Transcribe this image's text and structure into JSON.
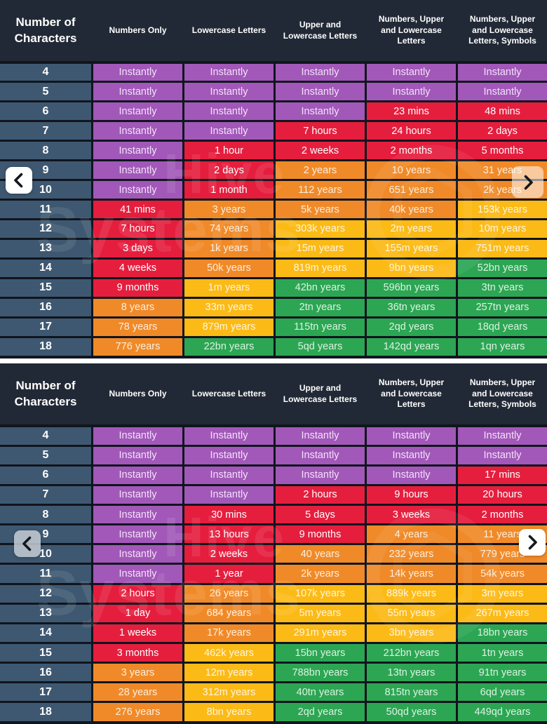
{
  "colors": {
    "purple": "#a258b8",
    "red": "#e51e3e",
    "orange": "#f08a28",
    "yellow": "#fcba16",
    "green": "#2ca653",
    "purple_text": "#f3e1fa",
    "red_text": "#ffffff",
    "orange_text": "#feeedd",
    "yellow_text": "#fff6df",
    "green_text": "#dbf3e2",
    "label_bg": "#3e5871",
    "header_bg": "#222936",
    "table_bg": "#10151e"
  },
  "watermark": {
    "word1": "Hive",
    "word2": "Systems"
  },
  "icons": {
    "prev": "chevron-left",
    "next": "chevron-right"
  },
  "chart_data": [
    {
      "type": "table",
      "columns": [
        "Number of Characters",
        "Numbers Only",
        "Lowercase Letters",
        "Upper and Lowercase Letters",
        "Numbers, Upper and Lowercase Letters",
        "Numbers, Upper and Lowercase Letters, Symbols"
      ],
      "rows": [
        [
          "4",
          "Instantly",
          "Instantly",
          "Instantly",
          "Instantly",
          "Instantly"
        ],
        [
          "5",
          "Instantly",
          "Instantly",
          "Instantly",
          "Instantly",
          "Instantly"
        ],
        [
          "6",
          "Instantly",
          "Instantly",
          "Instantly",
          "23 mins",
          "48 mins"
        ],
        [
          "7",
          "Instantly",
          "Instantly",
          "7 hours",
          "24 hours",
          "2 days"
        ],
        [
          "8",
          "Instantly",
          "1 hour",
          "2 weeks",
          "2 months",
          "5 months"
        ],
        [
          "9",
          "Instantly",
          "2 days",
          "2 years",
          "10 years",
          "31 years"
        ],
        [
          "10",
          "Instantly",
          "1 month",
          "112 years",
          "651 years",
          "2k years"
        ],
        [
          "11",
          "41 mins",
          "3 years",
          "5k years",
          "40k years",
          "153k years"
        ],
        [
          "12",
          "7 hours",
          "74 years",
          "303k years",
          "2m years",
          "10m years"
        ],
        [
          "13",
          "3 days",
          "1k years",
          "15m years",
          "155m years",
          "751m years"
        ],
        [
          "14",
          "4 weeks",
          "50k years",
          "819m years",
          "9bn years",
          "52bn years"
        ],
        [
          "15",
          "9 months",
          "1m years",
          "42bn years",
          "596bn years",
          "3tn years"
        ],
        [
          "16",
          "8 years",
          "33m years",
          "2tn years",
          "36tn years",
          "257tn years"
        ],
        [
          "17",
          "78 years",
          "879m years",
          "115tn years",
          "2qd years",
          "18qd years"
        ],
        [
          "18",
          "776 years",
          "22bn years",
          "5qd years",
          "142qd years",
          "1qn years"
        ]
      ],
      "row_colors": [
        [
          "purple",
          "purple",
          "purple",
          "purple",
          "purple"
        ],
        [
          "purple",
          "purple",
          "purple",
          "purple",
          "purple"
        ],
        [
          "purple",
          "purple",
          "purple",
          "red",
          "red"
        ],
        [
          "purple",
          "purple",
          "red",
          "red",
          "red"
        ],
        [
          "purple",
          "red",
          "red",
          "red",
          "red"
        ],
        [
          "purple",
          "red",
          "orange",
          "orange",
          "orange"
        ],
        [
          "purple",
          "red",
          "orange",
          "orange",
          "orange"
        ],
        [
          "red",
          "orange",
          "orange",
          "orange",
          "yellow"
        ],
        [
          "red",
          "orange",
          "yellow",
          "yellow",
          "yellow"
        ],
        [
          "red",
          "orange",
          "yellow",
          "yellow",
          "yellow"
        ],
        [
          "red",
          "orange",
          "yellow",
          "yellow",
          "green"
        ],
        [
          "red",
          "yellow",
          "green",
          "green",
          "green"
        ],
        [
          "orange",
          "yellow",
          "green",
          "green",
          "green"
        ],
        [
          "orange",
          "yellow",
          "green",
          "green",
          "green"
        ],
        [
          "orange",
          "green",
          "green",
          "green",
          "green"
        ]
      ]
    },
    {
      "type": "table",
      "columns": [
        "Number of Characters",
        "Numbers Only",
        "Lowercase Letters",
        "Upper and Lowercase Letters",
        "Numbers, Upper and Lowercase Letters",
        "Numbers, Upper and Lowercase Letters, Symbols"
      ],
      "rows": [
        [
          "4",
          "Instantly",
          "Instantly",
          "Instantly",
          "Instantly",
          "Instantly"
        ],
        [
          "5",
          "Instantly",
          "Instantly",
          "Instantly",
          "Instantly",
          "Instantly"
        ],
        [
          "6",
          "Instantly",
          "Instantly",
          "Instantly",
          "Instantly",
          "17 mins"
        ],
        [
          "7",
          "Instantly",
          "Instantly",
          "2 hours",
          "9 hours",
          "20 hours"
        ],
        [
          "8",
          "Instantly",
          "30 mins",
          "5 days",
          "3 weeks",
          "2 months"
        ],
        [
          "9",
          "Instantly",
          "13 hours",
          "9 months",
          "4 years",
          "11 years"
        ],
        [
          "10",
          "Instantly",
          "2 weeks",
          "40 years",
          "232 years",
          "779 years"
        ],
        [
          "11",
          "Instantly",
          "1 year",
          "2k years",
          "14k years",
          "54k years"
        ],
        [
          "12",
          "2 hours",
          "26 years",
          "107k years",
          "889k years",
          "3m years"
        ],
        [
          "13",
          "1 day",
          "684 years",
          "5m years",
          "55m years",
          "267m years"
        ],
        [
          "14",
          "1 weeks",
          "17k years",
          "291m years",
          "3bn years",
          "18bn years"
        ],
        [
          "15",
          "3 months",
          "462k years",
          "15bn years",
          "212bn years",
          "1tn years"
        ],
        [
          "16",
          "3 years",
          "12m years",
          "788bn years",
          "13tn years",
          "91tn years"
        ],
        [
          "17",
          "28 years",
          "312m years",
          "40tn years",
          "815tn years",
          "6qd years"
        ],
        [
          "18",
          "276 years",
          "8bn years",
          "2qd years",
          "50qd years",
          "449qd years"
        ]
      ],
      "row_colors": [
        [
          "purple",
          "purple",
          "purple",
          "purple",
          "purple"
        ],
        [
          "purple",
          "purple",
          "purple",
          "purple",
          "purple"
        ],
        [
          "purple",
          "purple",
          "purple",
          "purple",
          "red"
        ],
        [
          "purple",
          "purple",
          "red",
          "red",
          "red"
        ],
        [
          "purple",
          "red",
          "red",
          "red",
          "red"
        ],
        [
          "purple",
          "red",
          "red",
          "orange",
          "orange"
        ],
        [
          "purple",
          "red",
          "orange",
          "orange",
          "orange"
        ],
        [
          "purple",
          "red",
          "orange",
          "orange",
          "orange"
        ],
        [
          "red",
          "orange",
          "yellow",
          "yellow",
          "yellow"
        ],
        [
          "red",
          "orange",
          "yellow",
          "yellow",
          "yellow"
        ],
        [
          "red",
          "orange",
          "yellow",
          "yellow",
          "green"
        ],
        [
          "red",
          "yellow",
          "green",
          "green",
          "green"
        ],
        [
          "orange",
          "yellow",
          "green",
          "green",
          "green"
        ],
        [
          "orange",
          "yellow",
          "green",
          "green",
          "green"
        ],
        [
          "orange",
          "yellow",
          "green",
          "green",
          "green"
        ]
      ]
    }
  ]
}
